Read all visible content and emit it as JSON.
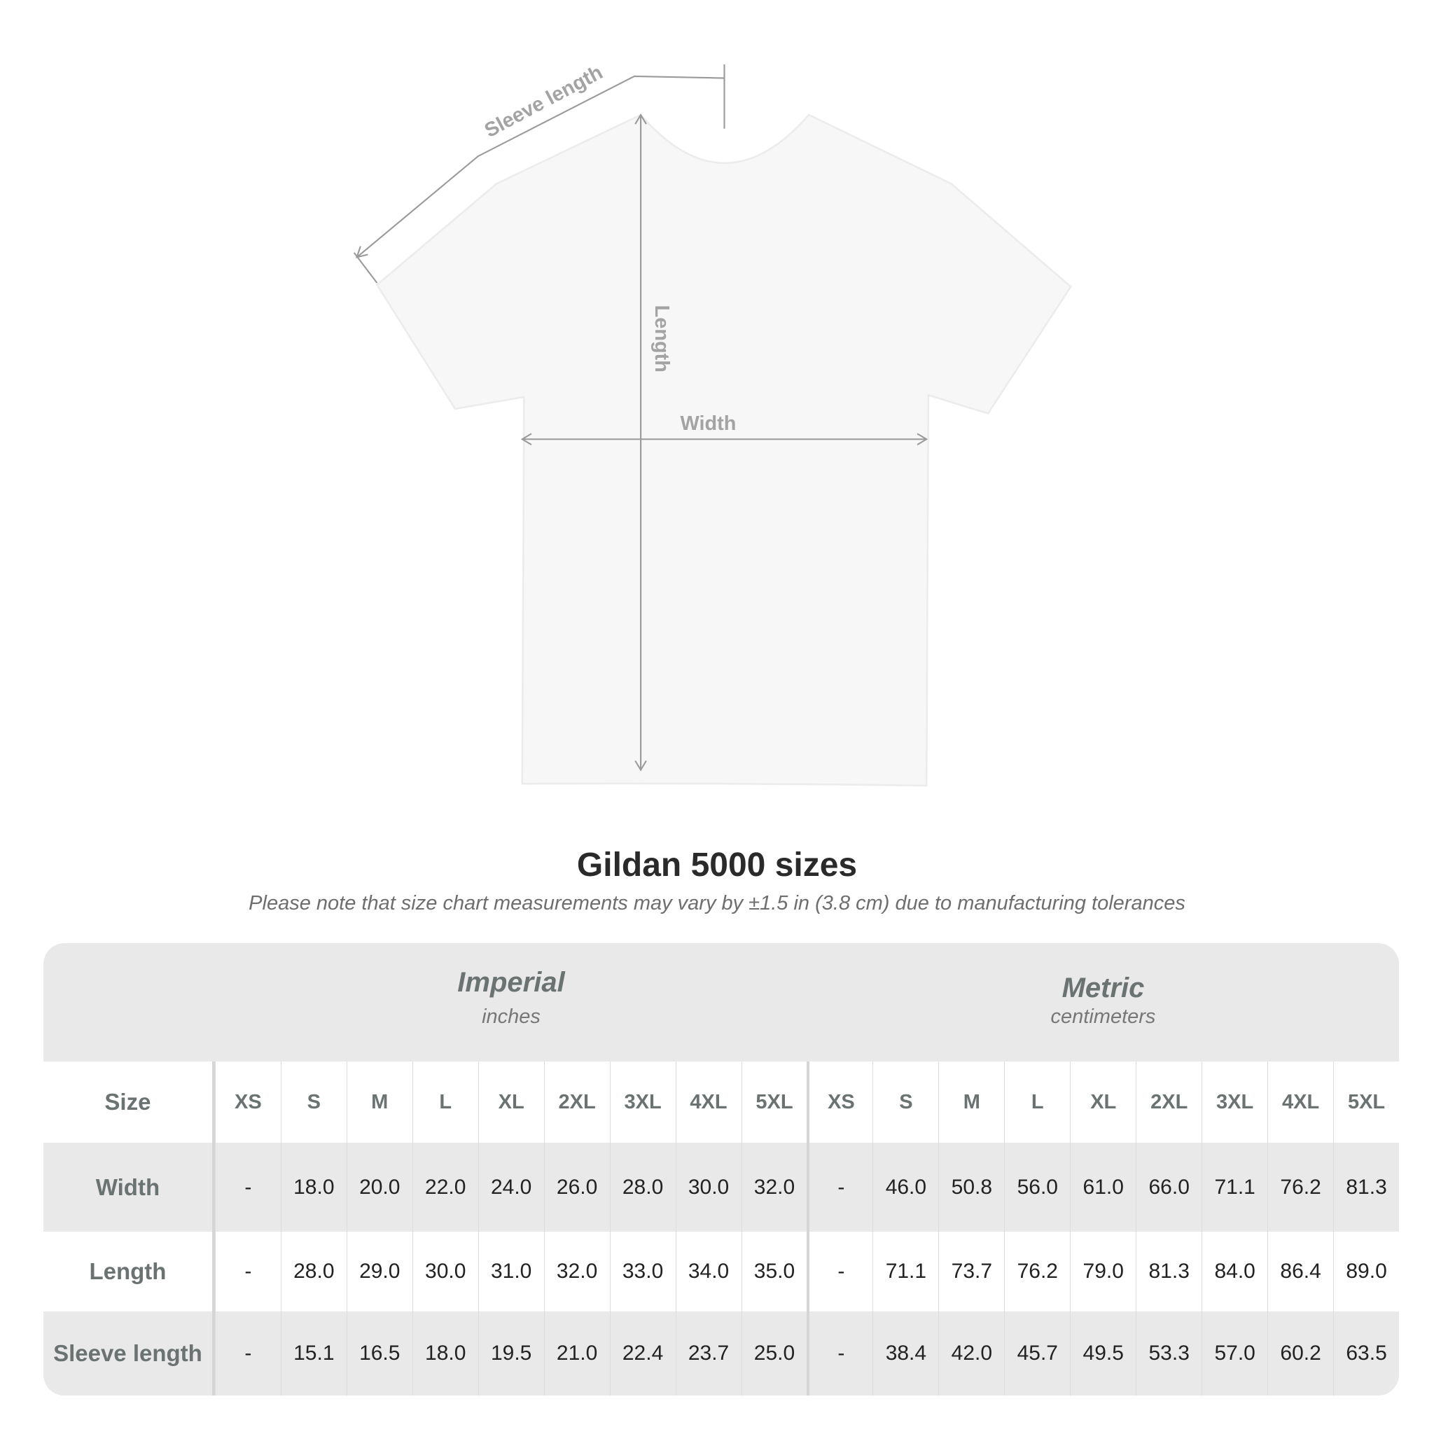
{
  "diagram": {
    "labels": {
      "sleeve": "Sleeve length",
      "length": "Length",
      "width": "Width"
    },
    "colors": {
      "arrow": "#9a9a9a",
      "shirt": "#f7f7f7",
      "table_band": "#e9e9e9",
      "header_text": "#6b7272"
    }
  },
  "title": "Gildan 5000 sizes",
  "note": "Please note that size chart measurements may vary by ±1.5 in (3.8 cm) due to manufacturing tolerances",
  "systems": [
    {
      "name": "Imperial",
      "unit": "inches"
    },
    {
      "name": "Metric",
      "unit": "centimeters"
    }
  ],
  "table": {
    "size_label": "Size",
    "sizes": [
      "XS",
      "S",
      "M",
      "L",
      "XL",
      "2XL",
      "3XL",
      "4XL",
      "5XL"
    ],
    "rows": [
      {
        "label": "Width",
        "imperial": [
          "-",
          "18.0",
          "20.0",
          "22.0",
          "24.0",
          "26.0",
          "28.0",
          "30.0",
          "32.0"
        ],
        "metric": [
          "-",
          "46.0",
          "50.8",
          "56.0",
          "61.0",
          "66.0",
          "71.1",
          "76.2",
          "81.3"
        ]
      },
      {
        "label": "Length",
        "imperial": [
          "-",
          "28.0",
          "29.0",
          "30.0",
          "31.0",
          "32.0",
          "33.0",
          "34.0",
          "35.0"
        ],
        "metric": [
          "-",
          "71.1",
          "73.7",
          "76.2",
          "79.0",
          "81.3",
          "84.0",
          "86.4",
          "89.0"
        ]
      },
      {
        "label": "Sleeve length",
        "imperial": [
          "-",
          "15.1",
          "16.5",
          "18.0",
          "19.5",
          "21.0",
          "22.4",
          "23.7",
          "25.0"
        ],
        "metric": [
          "-",
          "38.4",
          "42.0",
          "45.7",
          "49.5",
          "53.3",
          "57.0",
          "60.2",
          "63.5"
        ]
      }
    ]
  }
}
